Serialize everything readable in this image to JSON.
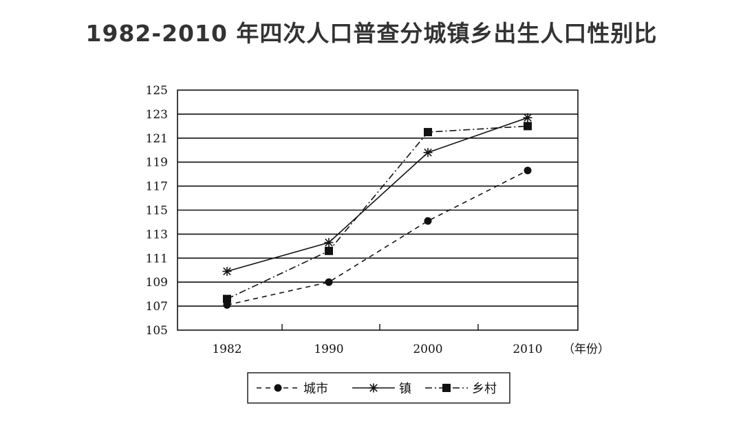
{
  "chart_data": {
    "type": "line",
    "title": "1982-2010 年四次人口普查分城镇乡出生人口性别比",
    "x_unit": "（年份）",
    "categories": [
      "1982",
      "1990",
      "2000",
      "2010"
    ],
    "ylim": [
      105,
      125
    ],
    "yticks": [
      105,
      107,
      109,
      111,
      113,
      115,
      117,
      119,
      121,
      123,
      125
    ],
    "grid": "horizontal",
    "legend_position": "bottom",
    "series": [
      {
        "name": "城市",
        "values": [
          107.1,
          109.0,
          114.1,
          118.3
        ],
        "marker": "circle",
        "line": "dashed"
      },
      {
        "name": "镇",
        "values": [
          109.9,
          112.3,
          119.8,
          122.7
        ],
        "marker": "star",
        "line": "solid"
      },
      {
        "name": "乡村",
        "values": [
          107.6,
          111.6,
          121.5,
          122.0
        ],
        "marker": "square",
        "line": "dashdot"
      }
    ]
  }
}
